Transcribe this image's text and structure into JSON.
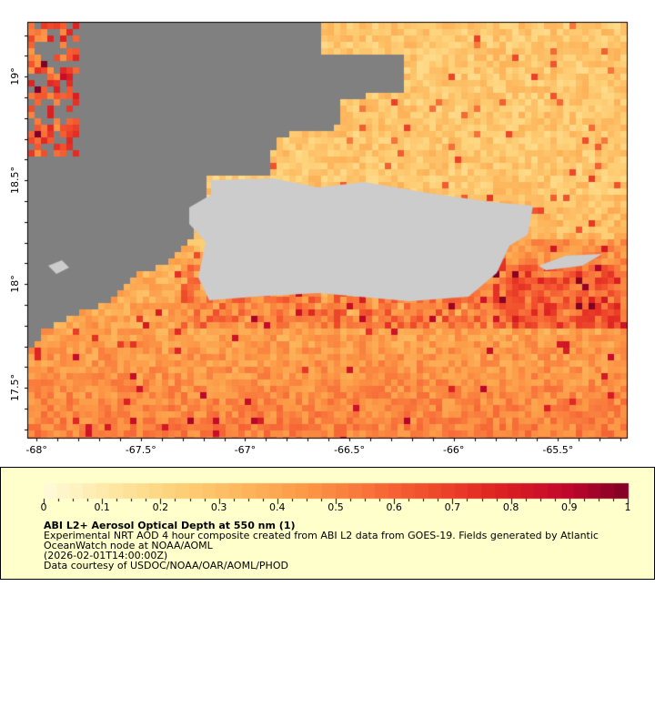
{
  "map": {
    "lat_ticks": [
      {
        "value": 19,
        "label": "19°"
      },
      {
        "value": 18.5,
        "label": "18.5°"
      },
      {
        "value": 18,
        "label": "18°"
      },
      {
        "value": 17.5,
        "label": "17.5°"
      }
    ],
    "lon_ticks": [
      {
        "value": -68,
        "label": "-68°"
      },
      {
        "value": -67.5,
        "label": "-67.5°"
      },
      {
        "value": -67,
        "label": "-67°"
      },
      {
        "value": -66.5,
        "label": "-66.5°"
      },
      {
        "value": -66,
        "label": "-66°"
      },
      {
        "value": -65.5,
        "label": "-65.5°"
      }
    ],
    "lon_range": [
      -68.04,
      -65.17
    ],
    "lat_range": [
      17.26,
      19.26
    ],
    "land_color": "#cccccc",
    "nodata_color": "#808080"
  },
  "colorbar": {
    "range": [
      0,
      1
    ],
    "tick_labels": [
      "0",
      "0.1",
      "0.2",
      "0.3",
      "0.4",
      "0.5",
      "0.6",
      "0.7",
      "0.8",
      "0.9",
      "1"
    ],
    "colormap": [
      "#fffbdc",
      "#fee9a6",
      "#fed27a",
      "#fdb85e",
      "#fc9a47",
      "#f8723a",
      "#f04a2b",
      "#dd2222",
      "#c4082b",
      "#800026"
    ]
  },
  "legend": {
    "title": "ABI L2+ Aerosol Optical Depth at 550 nm (1)",
    "line1": "Experimental NRT AOD 4 hour composite created from ABI L2 data from GOES-19. Fields generated by Atlantic",
    "line2": "OceanWatch node at NOAA/AOML",
    "time": "(2026-02-01T14:00:00Z)",
    "credit": "Data courtesy of USDOC/NOAA/OAR/AOML/PHOD"
  }
}
